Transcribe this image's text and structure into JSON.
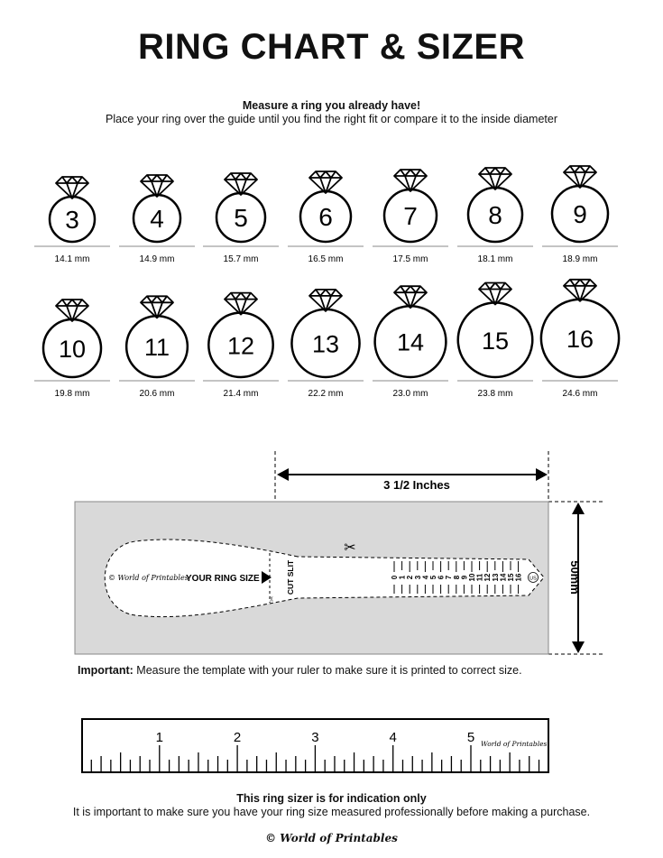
{
  "title": "RING CHART & SIZER",
  "intro": {
    "heading": "Measure a ring you already have!",
    "text": "Place your ring over the guide until you find the right fit or compare it to the inside diameter"
  },
  "rings": [
    {
      "size": "3",
      "diameter": "14.1 mm"
    },
    {
      "size": "4",
      "diameter": "14.9 mm"
    },
    {
      "size": "5",
      "diameter": "15.7 mm"
    },
    {
      "size": "6",
      "diameter": "16.5 mm"
    },
    {
      "size": "7",
      "diameter": "17.5 mm"
    },
    {
      "size": "8",
      "diameter": "18.1 mm"
    },
    {
      "size": "9",
      "diameter": "18.9 mm"
    },
    {
      "size": "10",
      "diameter": "19.8 mm"
    },
    {
      "size": "11",
      "diameter": "20.6 mm"
    },
    {
      "size": "12",
      "diameter": "21.4 mm"
    },
    {
      "size": "13",
      "diameter": "22.2 mm"
    },
    {
      "size": "14",
      "diameter": "23.0 mm"
    },
    {
      "size": "15",
      "diameter": "23.8 mm"
    },
    {
      "size": "16",
      "diameter": "24.6 mm"
    }
  ],
  "sizer": {
    "width_label": "3 1/2 Inches",
    "height_label": "50mm",
    "brand": "© World of Printables",
    "your_ring_size": "YOUR RING SIZE",
    "cut_slit": "CUT SLIT",
    "scale": [
      "0",
      "1",
      "2",
      "3",
      "4",
      "5",
      "6",
      "7",
      "8",
      "9",
      "10",
      "11",
      "12",
      "13",
      "14",
      "15",
      "16"
    ],
    "unit_badge": "US",
    "background_color": "#d9d9d9"
  },
  "important": {
    "label": "Important:",
    "text": "Measure the template with your ruler to make sure it is printed to correct size."
  },
  "ruler": {
    "numbers": [
      "1",
      "2",
      "3",
      "4",
      "5"
    ],
    "brand": "World of Printables"
  },
  "footer": {
    "heading": "This ring sizer is for indication only",
    "text": "It is important to make sure you have your ring size measured professionally before making a purchase.",
    "brand": "© World of Printables"
  }
}
